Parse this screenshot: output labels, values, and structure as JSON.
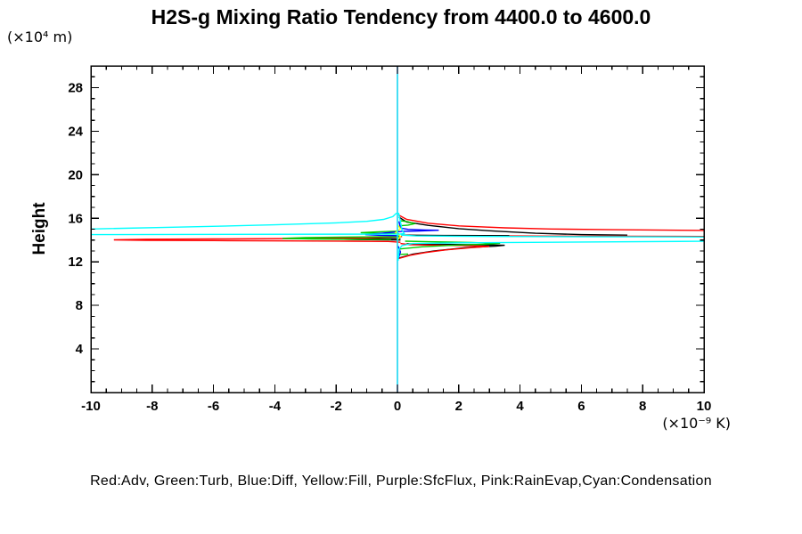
{
  "title": "H2S-g Mixing Ratio Tendency from 4400.0 to 4600.0",
  "y_axis_unit": "(×10⁴ m)",
  "y_axis_label": "Height",
  "x_axis_unit": "(×10⁻⁹ K)",
  "legend_caption": "Red:Adv, Green:Turb, Blue:Diff, Yellow:Fill, Purple:SfcFlux, Pink:RainEvap,Cyan:Condensation",
  "chart_data": {
    "type": "line",
    "title": "H2S-g Mixing Ratio Tendency from 4400.0 to 4600.0",
    "xlabel": "(×10⁻⁹ K)",
    "ylabel": "Height (×10⁴ m)",
    "xlim": [
      -10,
      10
    ],
    "ylim": [
      0,
      30
    ],
    "x_major_ticks": [
      -10,
      -8,
      -6,
      -4,
      -2,
      0,
      2,
      4,
      6,
      8,
      10
    ],
    "x_minor_step": 0.5,
    "y_major_ticks": [
      0,
      4,
      8,
      12,
      16,
      20,
      24,
      28
    ],
    "y_labeled_ticks": [
      4,
      8,
      12,
      16,
      20,
      24,
      28
    ],
    "y_minor_step": 1,
    "grid": false,
    "legend_position": "bottom-caption",
    "axis_color": "#000000",
    "background": "#ffffff",
    "series": [
      {
        "name": "SfcFlux",
        "color": "#b000d0",
        "lines": [
          [
            [
              0,
              0
            ],
            [
              0,
              30
            ]
          ]
        ]
      },
      {
        "name": "RainEvap",
        "color": "#ff80c0",
        "lines": [
          [
            [
              0,
              0
            ],
            [
              0,
              30
            ]
          ]
        ]
      },
      {
        "name": "Black (total, not in legend)",
        "color": "#000000",
        "lines": [
          [
            [
              0.05,
              16.1
            ],
            [
              0.3,
              15.65
            ],
            [
              1,
              15.35
            ],
            [
              2,
              15.05
            ],
            [
              3,
              14.85
            ],
            [
              4.5,
              14.62
            ],
            [
              6,
              14.5
            ],
            [
              7.5,
              14.45
            ]
          ],
          [
            [
              0.15,
              14.45
            ],
            [
              1.5,
              14.42
            ],
            [
              3.65,
              14.4
            ]
          ],
          [
            [
              0.1,
              14.15
            ],
            [
              -1.2,
              14.12
            ],
            [
              -1.75,
              14.08
            ],
            [
              -1.2,
              14.04
            ],
            [
              0.1,
              14.0
            ]
          ],
          [
            [
              0.05,
              12.35
            ],
            [
              0.5,
              12.7
            ],
            [
              1.2,
              13.0
            ],
            [
              2.2,
              13.3
            ],
            [
              3.2,
              13.45
            ],
            [
              3.5,
              13.52
            ],
            [
              2.6,
              13.57
            ],
            [
              1.2,
              13.62
            ],
            [
              0.3,
              13.65
            ]
          ]
        ]
      },
      {
        "name": "Adv",
        "color": "#ff0000",
        "lines": [
          [
            [
              0.04,
              16.3
            ],
            [
              0.3,
              15.9
            ],
            [
              1,
              15.55
            ],
            [
              2,
              15.3
            ],
            [
              3.5,
              15.12
            ],
            [
              5,
              15.02
            ],
            [
              7,
              14.95
            ],
            [
              10.2,
              14.88
            ]
          ],
          [
            [
              3.65,
              14.38
            ],
            [
              5,
              14.36
            ],
            [
              10.2,
              14.33
            ]
          ],
          [
            [
              0.15,
              14.32
            ],
            [
              -1,
              14.2
            ],
            [
              -3,
              14.14
            ],
            [
              -6,
              14.1
            ],
            [
              -8.2,
              14.08
            ],
            [
              -9.25,
              14.02
            ],
            [
              -8.2,
              13.97
            ],
            [
              -6,
              13.95
            ],
            [
              -3.5,
              13.92
            ],
            [
              -1.5,
              13.9
            ],
            [
              -0.3,
              13.87
            ],
            [
              0.1,
              13.8
            ]
          ],
          [
            [
              0.04,
              12.3
            ],
            [
              0.4,
              12.6
            ],
            [
              0.9,
              12.85
            ],
            [
              1.6,
              13.1
            ],
            [
              2.4,
              13.3
            ],
            [
              3.0,
              13.42
            ],
            [
              2.3,
              13.48
            ],
            [
              1.2,
              13.53
            ],
            [
              0.4,
              13.58
            ],
            [
              0.1,
              13.68
            ]
          ]
        ]
      },
      {
        "name": "Turb",
        "color": "#00cc00",
        "lines": [
          [
            [
              0.1,
              14.32
            ],
            [
              -1.5,
              14.28
            ],
            [
              -3.0,
              14.22
            ],
            [
              -3.75,
              14.16
            ],
            [
              -2.8,
              14.1
            ],
            [
              -1.3,
              14.07
            ],
            [
              -0.2,
              14.05
            ]
          ],
          [
            [
              0.05,
              14.82
            ],
            [
              -0.7,
              14.75
            ],
            [
              -1.2,
              14.68
            ],
            [
              -0.7,
              14.62
            ],
            [
              0.05,
              14.58
            ]
          ],
          [
            [
              0.1,
              15.78
            ],
            [
              0.35,
              15.68
            ],
            [
              0.55,
              15.5
            ],
            [
              0.35,
              15.38
            ],
            [
              0.12,
              15.32
            ]
          ],
          [
            [
              0.05,
              13.18
            ],
            [
              0.8,
              13.38
            ],
            [
              1.8,
              13.52
            ],
            [
              2.8,
              13.62
            ],
            [
              3.35,
              13.7
            ],
            [
              2.4,
              13.78
            ],
            [
              1.0,
              13.85
            ],
            [
              0.25,
              13.9
            ]
          ],
          [
            [
              0.03,
              12.68
            ],
            [
              0.35,
              12.72
            ]
          ]
        ]
      },
      {
        "name": "Diff",
        "color": "#0000ff",
        "lines": [
          [
            [
              0.05,
              15.72
            ],
            [
              0.1,
              15.1
            ],
            [
              0.35,
              14.98
            ],
            [
              0.9,
              14.93
            ],
            [
              1.35,
              14.9
            ],
            [
              0.7,
              14.84
            ],
            [
              0.15,
              14.8
            ],
            [
              -0.5,
              14.62
            ],
            [
              -1.05,
              14.5
            ],
            [
              -0.55,
              14.44
            ],
            [
              0.05,
              14.4
            ]
          ],
          [
            [
              0.02,
              13.45
            ],
            [
              0.1,
              12.9
            ],
            [
              0.02,
              12.25
            ]
          ]
        ]
      },
      {
        "name": "Fill",
        "color": "#ffff00",
        "lines": [
          [
            [
              0.02,
              15.35
            ],
            [
              0.1,
              15.05
            ],
            [
              -0.06,
              14.7
            ],
            [
              0.1,
              14.35
            ],
            [
              0.0,
              14.0
            ]
          ]
        ]
      },
      {
        "name": "Condensation",
        "color": "#00ffff",
        "lines": [
          [
            [
              0,
              0
            ],
            [
              0,
              30
            ]
          ],
          [
            [
              -10.3,
              15.0
            ],
            [
              -7,
              15.2
            ],
            [
              -4,
              15.4
            ],
            [
              -2,
              15.58
            ],
            [
              -1,
              15.72
            ],
            [
              -0.45,
              15.9
            ],
            [
              -0.15,
              16.15
            ],
            [
              -0.04,
              16.45
            ],
            [
              0.04,
              16.45
            ],
            [
              0.1,
              15.7
            ],
            [
              0.15,
              14.9
            ],
            [
              0.22,
              14.6
            ],
            [
              0.1,
              14.55
            ],
            [
              -10.3,
              14.5
            ]
          ],
          [
            [
              0.12,
              14.45
            ],
            [
              0.6,
              14.38
            ],
            [
              3,
              14.33
            ],
            [
              10.3,
              14.28
            ]
          ],
          [
            [
              10.3,
              13.9
            ],
            [
              5,
              13.8
            ],
            [
              2,
              13.75
            ],
            [
              0.5,
              13.68
            ],
            [
              0.15,
              13.5
            ],
            [
              0.06,
              13.2
            ],
            [
              0.02,
              12.1
            ]
          ]
        ]
      }
    ]
  }
}
